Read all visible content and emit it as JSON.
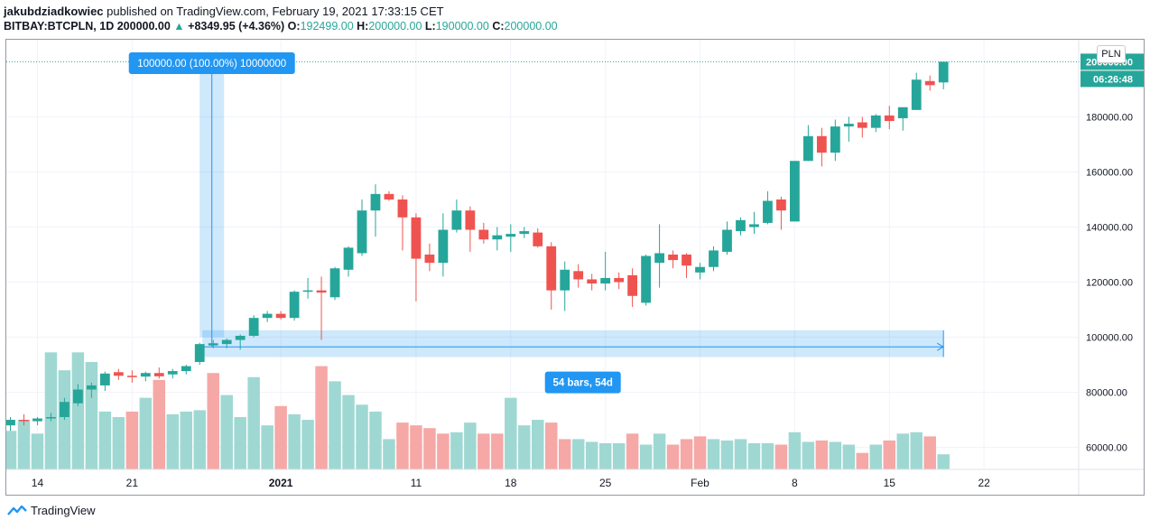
{
  "header": {
    "author": "jakubdziadkowiec",
    "published_text": "published on TradingView.com, February 19, 2021 17:33:15 CET",
    "symbol": "BITBAY:BTCPLN, 1D",
    "last": "200000.00",
    "change": "+8349.95 (+4.36%)",
    "o_label": "O:",
    "o_value": "192499.00",
    "h_label": "H:",
    "h_value": "200000.00",
    "l_label": "L:",
    "l_value": "190000.00",
    "c_label": "C:",
    "c_value": "200000.00"
  },
  "currency_button": "PLN",
  "price_tag": "200000.00",
  "countdown_tag": "06:26:48",
  "measure_label": "100000.00 (100.00%) 10000000",
  "range_label": "54 bars, 54d",
  "footer_brand": "TradingView",
  "colors": {
    "up": "#26a69a",
    "down": "#ef5350",
    "vol_up": "#9fd8d2",
    "vol_down": "#f5a8a6",
    "measure": "#2196f3"
  },
  "chart_data": {
    "type": "candlestick",
    "title": "BITBAY:BTCPLN, 1D",
    "ylim": [
      52000,
      208000
    ],
    "y_ticks": [
      "60000.00",
      "80000.00",
      "100000.00",
      "120000.00",
      "140000.00",
      "160000.00",
      "180000.00"
    ],
    "y_tick_values": [
      60000,
      80000,
      100000,
      120000,
      140000,
      160000,
      180000
    ],
    "x_ticks": [
      {
        "label": "14",
        "index": 2
      },
      {
        "label": "21",
        "index": 9
      },
      {
        "label": "2021",
        "index": 20
      },
      {
        "label": "11",
        "index": 30
      },
      {
        "label": "18",
        "index": 37
      },
      {
        "label": "25",
        "index": 44
      },
      {
        "label": "Feb",
        "index": 51
      },
      {
        "label": "8",
        "index": 58
      },
      {
        "label": "15",
        "index": 65
      },
      {
        "label": "22",
        "index": 72
      }
    ],
    "x_range": [
      -0.3,
      79
    ],
    "candles": [
      {
        "o": 68000,
        "h": 71000,
        "l": 66000,
        "c": 70000
      },
      {
        "o": 70000,
        "h": 72000,
        "l": 68000,
        "c": 69500
      },
      {
        "o": 69500,
        "h": 71000,
        "l": 68000,
        "c": 70500
      },
      {
        "o": 70500,
        "h": 72500,
        "l": 69500,
        "c": 71000
      },
      {
        "o": 71000,
        "h": 78000,
        "l": 70000,
        "c": 76500
      },
      {
        "o": 76000,
        "h": 83000,
        "l": 75000,
        "c": 81000
      },
      {
        "o": 81000,
        "h": 83500,
        "l": 78000,
        "c": 82500
      },
      {
        "o": 82500,
        "h": 87500,
        "l": 80500,
        "c": 86800
      },
      {
        "o": 87300,
        "h": 88500,
        "l": 84500,
        "c": 86000
      },
      {
        "o": 86000,
        "h": 88000,
        "l": 83500,
        "c": 85500
      },
      {
        "o": 85700,
        "h": 87500,
        "l": 84000,
        "c": 87000
      },
      {
        "o": 87000,
        "h": 89000,
        "l": 85000,
        "c": 85800
      },
      {
        "o": 86500,
        "h": 88500,
        "l": 85000,
        "c": 87700
      },
      {
        "o": 87700,
        "h": 90000,
        "l": 86500,
        "c": 89500
      },
      {
        "o": 91000,
        "h": 98000,
        "l": 90000,
        "c": 97500
      },
      {
        "o": 97000,
        "h": 99000,
        "l": 96000,
        "c": 97800
      },
      {
        "o": 97500,
        "h": 99500,
        "l": 96000,
        "c": 99000
      },
      {
        "o": 99000,
        "h": 101000,
        "l": 95500,
        "c": 100500
      },
      {
        "o": 100500,
        "h": 108000,
        "l": 100000,
        "c": 107000
      },
      {
        "o": 107000,
        "h": 109500,
        "l": 105500,
        "c": 108500
      },
      {
        "o": 108500,
        "h": 109500,
        "l": 106500,
        "c": 107000
      },
      {
        "o": 107000,
        "h": 117000,
        "l": 106000,
        "c": 116500
      },
      {
        "o": 116500,
        "h": 121500,
        "l": 114000,
        "c": 117000
      },
      {
        "o": 117000,
        "h": 122000,
        "l": 99000,
        "c": 116200
      },
      {
        "o": 114500,
        "h": 125500,
        "l": 113500,
        "c": 125000
      },
      {
        "o": 124500,
        "h": 133000,
        "l": 122000,
        "c": 132500
      },
      {
        "o": 130500,
        "h": 150000,
        "l": 129500,
        "c": 146000
      },
      {
        "o": 146000,
        "h": 155500,
        "l": 136500,
        "c": 152000
      },
      {
        "o": 152000,
        "h": 153000,
        "l": 149500,
        "c": 150000
      },
      {
        "o": 150000,
        "h": 151500,
        "l": 131500,
        "c": 143500
      },
      {
        "o": 143500,
        "h": 145000,
        "l": 113000,
        "c": 128500
      },
      {
        "o": 130000,
        "h": 134000,
        "l": 124000,
        "c": 127000
      },
      {
        "o": 127000,
        "h": 145000,
        "l": 122000,
        "c": 139000
      },
      {
        "o": 139000,
        "h": 150000,
        "l": 138000,
        "c": 146000
      },
      {
        "o": 146000,
        "h": 147500,
        "l": 131000,
        "c": 139000
      },
      {
        "o": 139000,
        "h": 141500,
        "l": 134000,
        "c": 135500
      },
      {
        "o": 135500,
        "h": 140000,
        "l": 131500,
        "c": 137000
      },
      {
        "o": 136500,
        "h": 141000,
        "l": 131000,
        "c": 137500
      },
      {
        "o": 137500,
        "h": 140000,
        "l": 136000,
        "c": 138500
      },
      {
        "o": 138000,
        "h": 139500,
        "l": 132500,
        "c": 133000
      },
      {
        "o": 133000,
        "h": 134500,
        "l": 110000,
        "c": 117000
      },
      {
        "o": 117000,
        "h": 127500,
        "l": 109500,
        "c": 124500
      },
      {
        "o": 124000,
        "h": 126500,
        "l": 118000,
        "c": 121000
      },
      {
        "o": 121000,
        "h": 123000,
        "l": 117000,
        "c": 119500
      },
      {
        "o": 119500,
        "h": 131000,
        "l": 117000,
        "c": 121500
      },
      {
        "o": 121500,
        "h": 123500,
        "l": 117500,
        "c": 120000
      },
      {
        "o": 122500,
        "h": 125000,
        "l": 111000,
        "c": 115000
      },
      {
        "o": 112500,
        "h": 130000,
        "l": 111500,
        "c": 129500
      },
      {
        "o": 127000,
        "h": 141000,
        "l": 118000,
        "c": 130500
      },
      {
        "o": 130000,
        "h": 131500,
        "l": 125000,
        "c": 128000
      },
      {
        "o": 130000,
        "h": 130500,
        "l": 121500,
        "c": 126000
      },
      {
        "o": 123500,
        "h": 127000,
        "l": 121000,
        "c": 125500
      },
      {
        "o": 125500,
        "h": 133000,
        "l": 124000,
        "c": 131500
      },
      {
        "o": 131000,
        "h": 142000,
        "l": 130000,
        "c": 139000
      },
      {
        "o": 138500,
        "h": 143500,
        "l": 137000,
        "c": 142500
      },
      {
        "o": 140000,
        "h": 145500,
        "l": 137500,
        "c": 141000
      },
      {
        "o": 141500,
        "h": 153000,
        "l": 141000,
        "c": 149500
      },
      {
        "o": 150000,
        "h": 151000,
        "l": 139000,
        "c": 146000
      },
      {
        "o": 142000,
        "h": 164000,
        "l": 142000,
        "c": 164000
      },
      {
        "o": 164000,
        "h": 177000,
        "l": 164000,
        "c": 173000
      },
      {
        "o": 173000,
        "h": 176000,
        "l": 162000,
        "c": 167000
      },
      {
        "o": 167000,
        "h": 179000,
        "l": 164000,
        "c": 176500
      },
      {
        "o": 176500,
        "h": 180000,
        "l": 171000,
        "c": 177500
      },
      {
        "o": 178000,
        "h": 180000,
        "l": 172500,
        "c": 176000
      },
      {
        "o": 176000,
        "h": 181000,
        "l": 174500,
        "c": 180500
      },
      {
        "o": 180500,
        "h": 184000,
        "l": 175500,
        "c": 178500
      },
      {
        "o": 179500,
        "h": 182000,
        "l": 175000,
        "c": 183500
      },
      {
        "o": 182500,
        "h": 196000,
        "l": 182500,
        "c": 193500
      },
      {
        "o": 193000,
        "h": 195000,
        "l": 189500,
        "c": 191500
      },
      {
        "o": 192499,
        "h": 200000,
        "l": 190000,
        "c": 200000
      }
    ],
    "volumes": [
      {
        "v": 66000,
        "up": true
      },
      {
        "v": 70000,
        "up": true
      },
      {
        "v": 65000,
        "up": true
      },
      {
        "v": 94500,
        "up": true
      },
      {
        "v": 88000,
        "up": true
      },
      {
        "v": 94500,
        "up": true
      },
      {
        "v": 91000,
        "up": true
      },
      {
        "v": 73000,
        "up": true
      },
      {
        "v": 71000,
        "up": true
      },
      {
        "v": 73000,
        "up": false
      },
      {
        "v": 78000,
        "up": true
      },
      {
        "v": 84500,
        "up": false
      },
      {
        "v": 72000,
        "up": true
      },
      {
        "v": 73000,
        "up": true
      },
      {
        "v": 73500,
        "up": true
      },
      {
        "v": 87000,
        "up": false
      },
      {
        "v": 79000,
        "up": true
      },
      {
        "v": 71000,
        "up": true
      },
      {
        "v": 85500,
        "up": true
      },
      {
        "v": 68000,
        "up": true
      },
      {
        "v": 75000,
        "up": false
      },
      {
        "v": 72000,
        "up": true
      },
      {
        "v": 70000,
        "up": true
      },
      {
        "v": 89500,
        "up": false
      },
      {
        "v": 84000,
        "up": true
      },
      {
        "v": 79000,
        "up": true
      },
      {
        "v": 75500,
        "up": true
      },
      {
        "v": 73000,
        "up": true
      },
      {
        "v": 63000,
        "up": true
      },
      {
        "v": 69000,
        "up": false
      },
      {
        "v": 68000,
        "up": false
      },
      {
        "v": 67000,
        "up": false
      },
      {
        "v": 65000,
        "up": false
      },
      {
        "v": 65500,
        "up": true
      },
      {
        "v": 69000,
        "up": true
      },
      {
        "v": 65000,
        "up": false
      },
      {
        "v": 65000,
        "up": false
      },
      {
        "v": 78000,
        "up": true
      },
      {
        "v": 68000,
        "up": true
      },
      {
        "v": 70000,
        "up": true
      },
      {
        "v": 69000,
        "up": false
      },
      {
        "v": 63000,
        "up": false
      },
      {
        "v": 63000,
        "up": true
      },
      {
        "v": 62000,
        "up": true
      },
      {
        "v": 61500,
        "up": true
      },
      {
        "v": 61500,
        "up": true
      },
      {
        "v": 65000,
        "up": false
      },
      {
        "v": 61000,
        "up": true
      },
      {
        "v": 65000,
        "up": true
      },
      {
        "v": 61000,
        "up": false
      },
      {
        "v": 63000,
        "up": false
      },
      {
        "v": 64000,
        "up": false
      },
      {
        "v": 63000,
        "up": true
      },
      {
        "v": 62500,
        "up": true
      },
      {
        "v": 63000,
        "up": true
      },
      {
        "v": 61500,
        "up": true
      },
      {
        "v": 61500,
        "up": true
      },
      {
        "v": 61000,
        "up": false
      },
      {
        "v": 65500,
        "up": true
      },
      {
        "v": 62000,
        "up": true
      },
      {
        "v": 62500,
        "up": false
      },
      {
        "v": 62000,
        "up": true
      },
      {
        "v": 61000,
        "up": true
      },
      {
        "v": 58000,
        "up": false
      },
      {
        "v": 61000,
        "up": true
      },
      {
        "v": 62500,
        "up": false
      },
      {
        "v": 65000,
        "up": true
      },
      {
        "v": 65500,
        "up": true
      },
      {
        "v": 64000,
        "up": false
      },
      {
        "v": 57500,
        "up": true
      }
    ],
    "measure": {
      "y_from": 100000,
      "y_to": 200000,
      "x_from": 15,
      "x_to": 69,
      "bars": 54
    }
  }
}
